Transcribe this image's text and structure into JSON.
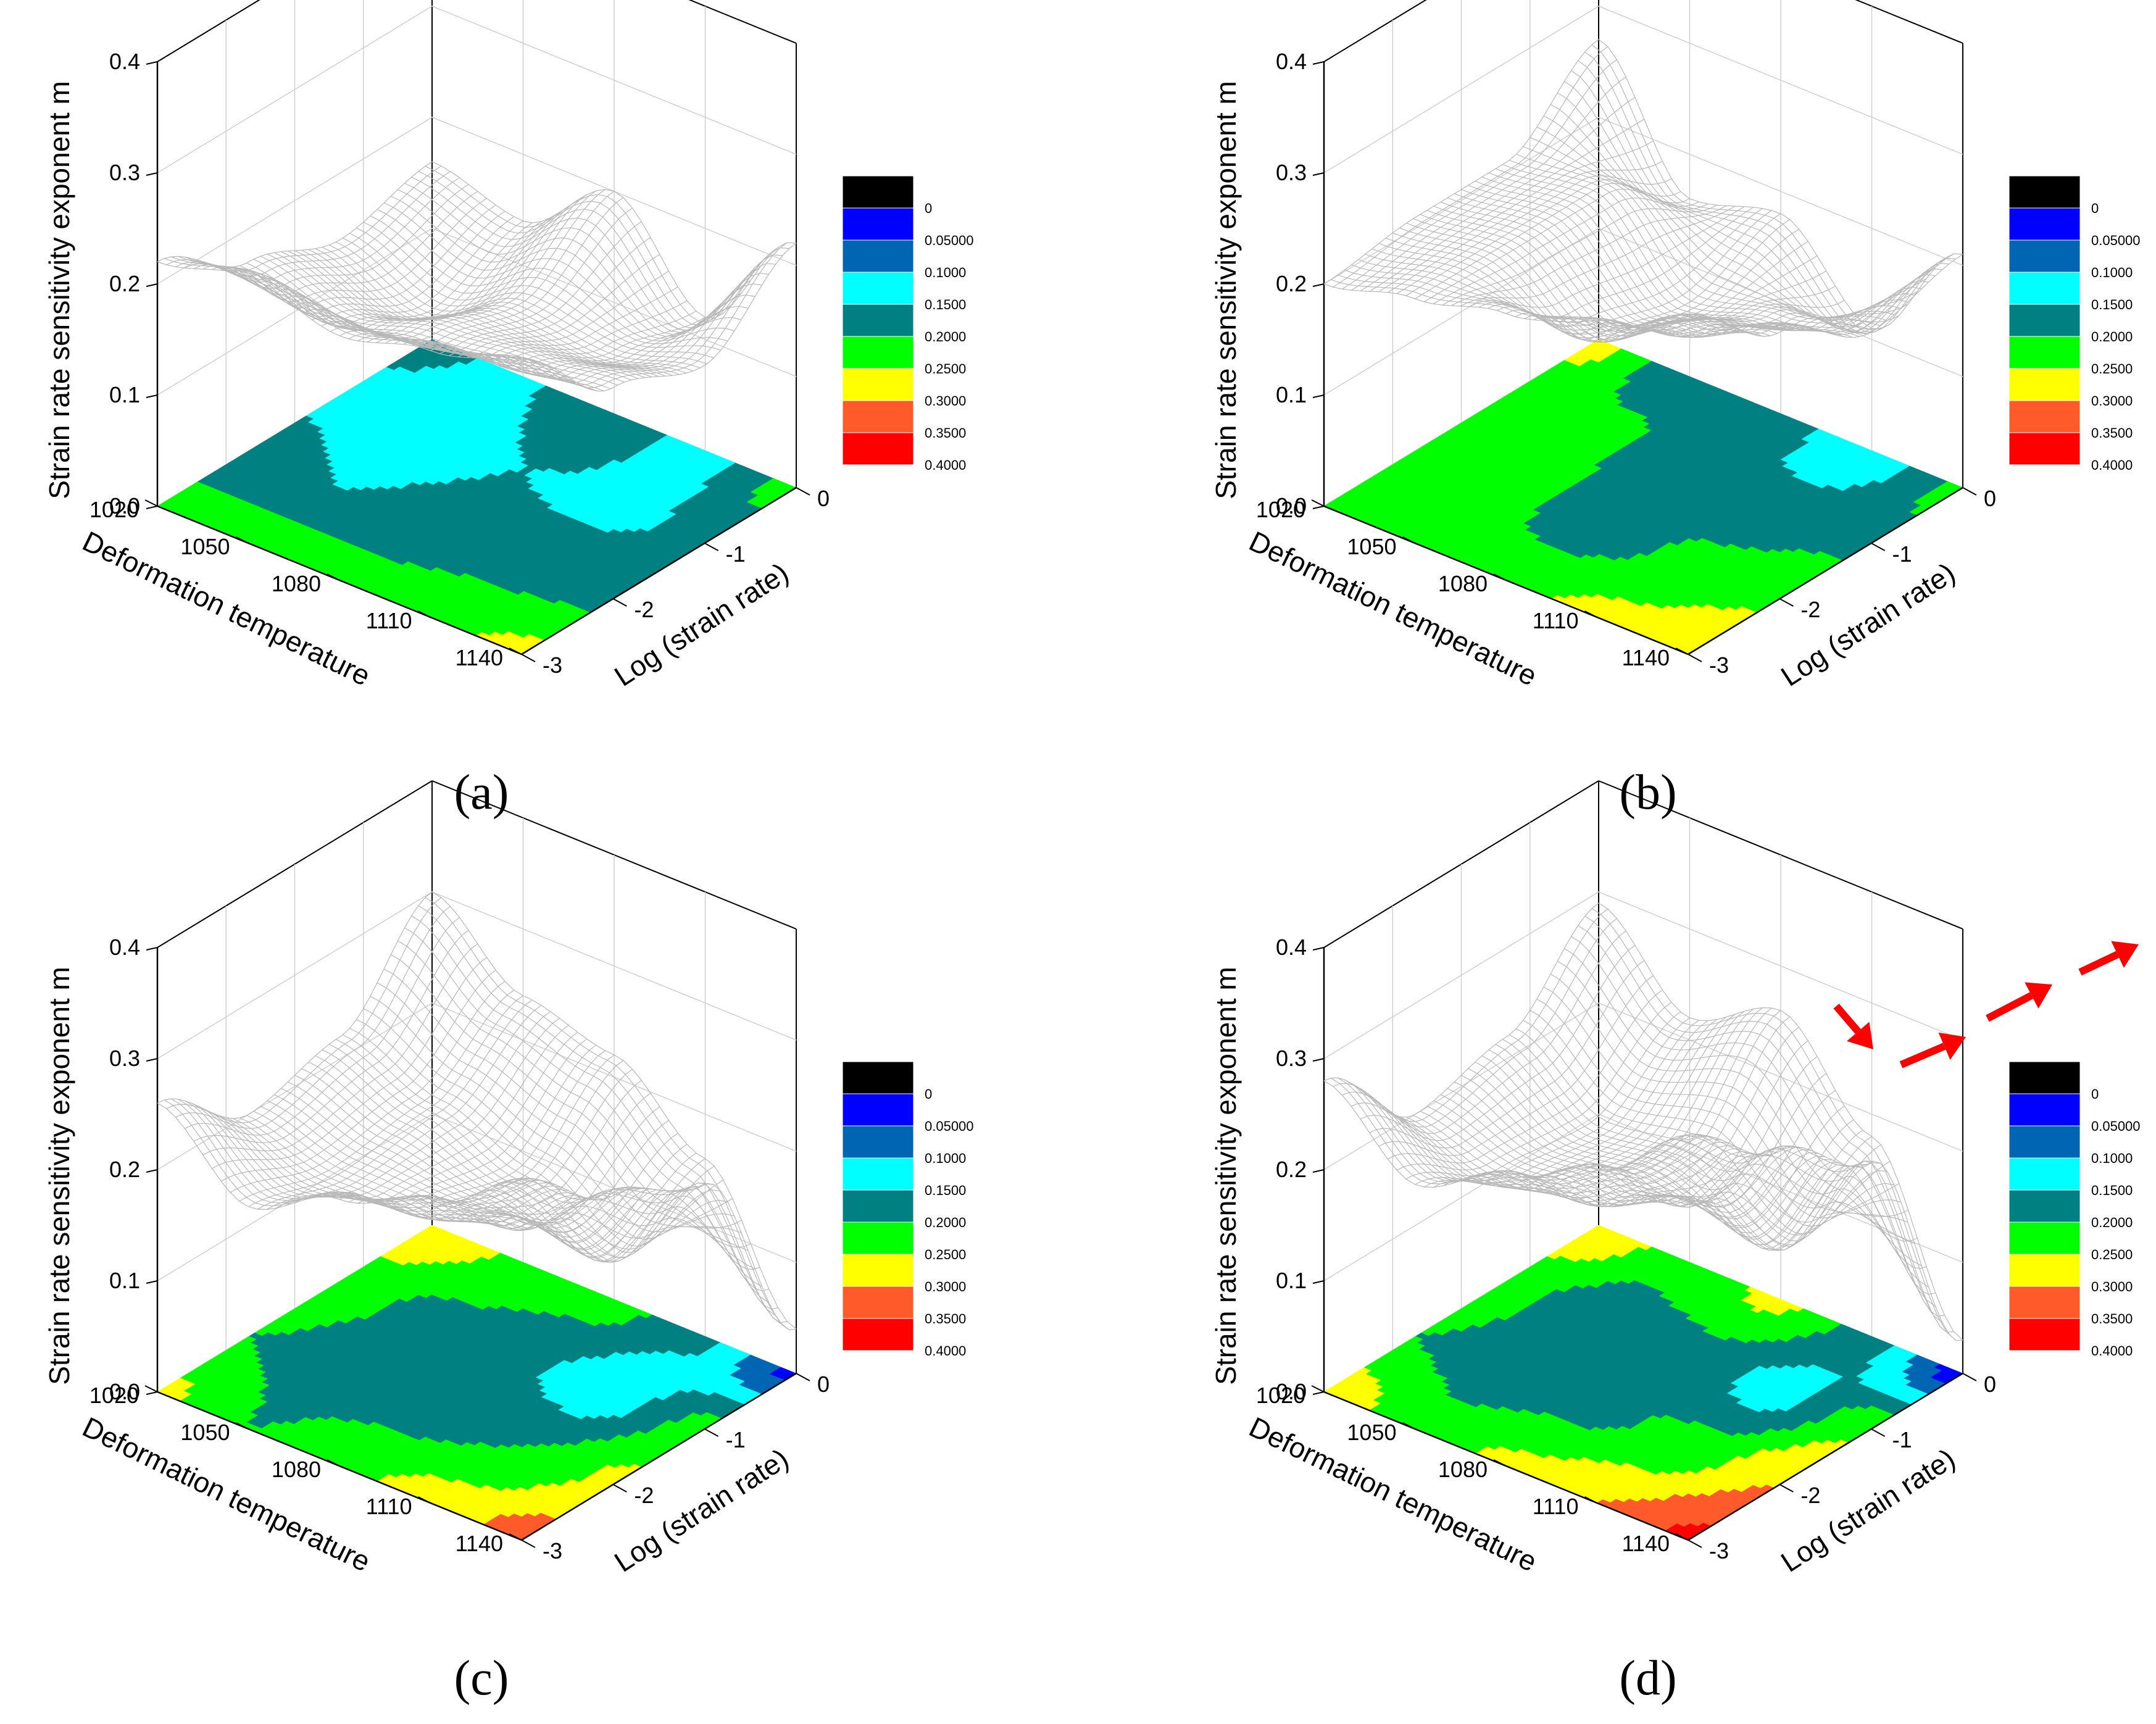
{
  "figure": {
    "panels": [
      {
        "id": "a",
        "caption": "(a)"
      },
      {
        "id": "b",
        "caption": "(b)"
      },
      {
        "id": "c",
        "caption": "(c)"
      },
      {
        "id": "d",
        "caption": "(d)"
      }
    ]
  },
  "chart_data": [
    {
      "panel": "a",
      "type": "surface3d+contour",
      "title": "",
      "xlabel": "Deformation temperature",
      "ylabel": "Log (strain rate)",
      "zlabel": "Strain rate sensitivity exponent m",
      "x_ticks": [
        "1020",
        "1050",
        "1080",
        "1110",
        "1140"
      ],
      "y_ticks": [
        "0",
        "-1",
        "-2",
        "-3"
      ],
      "z_ticks": [
        "0.0",
        "0.1",
        "0.2",
        "0.3",
        "0.4"
      ],
      "xlim": [
        1020,
        1140
      ],
      "ylim": [
        -3,
        0
      ],
      "zlim": [
        0,
        0.4
      ],
      "x": [
        1020,
        1050,
        1080,
        1110,
        1140
      ],
      "y": [
        0,
        -1,
        -2,
        -3
      ],
      "m": [
        [
          0.16,
          0.14,
          0.17,
          0.22
        ],
        [
          0.14,
          0.11,
          0.15,
          0.24
        ],
        [
          0.2,
          0.15,
          0.17,
          0.22
        ],
        [
          0.12,
          0.14,
          0.18,
          0.24
        ],
        [
          0.22,
          0.16,
          0.19,
          0.26
        ]
      ],
      "legend": {
        "levels": [
          "",
          "0",
          "0.05000",
          "0.1000",
          "0.1500",
          "0.2000",
          "0.2500",
          "0.3000",
          "0.3500",
          "0.4000"
        ],
        "colors": [
          "#000000",
          "#0000ff",
          "#0066b3",
          "#00ffff",
          "#008080",
          "#00ff00",
          "#ffff00",
          "#ff5a2a",
          "#ff0000"
        ]
      }
    },
    {
      "panel": "b",
      "type": "surface3d+contour",
      "title": "",
      "xlabel": "Deformation temperature",
      "ylabel": "Log (strain rate)",
      "zlabel": "Strain rate sensitivity exponent m",
      "x_ticks": [
        "1020",
        "1050",
        "1080",
        "1110",
        "1140"
      ],
      "y_ticks": [
        "0",
        "-1",
        "-2",
        "-3"
      ],
      "z_ticks": [
        "0.0",
        "0.1",
        "0.2",
        "0.3",
        "0.4"
      ],
      "xlim": [
        1020,
        1140
      ],
      "ylim": [
        -3,
        0
      ],
      "zlim": [
        0,
        0.4
      ],
      "x": [
        1020,
        1050,
        1080,
        1110,
        1140
      ],
      "y": [
        0,
        -1,
        -2,
        -3
      ],
      "m": [
        [
          0.27,
          0.21,
          0.21,
          0.2
        ],
        [
          0.16,
          0.22,
          0.22,
          0.22
        ],
        [
          0.18,
          0.15,
          0.17,
          0.24
        ],
        [
          0.11,
          0.17,
          0.21,
          0.26
        ],
        [
          0.21,
          0.19,
          0.24,
          0.3
        ]
      ],
      "legend": {
        "levels": [
          "",
          "0",
          "0.05000",
          "0.1000",
          "0.1500",
          "0.2000",
          "0.2500",
          "0.3000",
          "0.3500",
          "0.4000"
        ],
        "colors": [
          "#000000",
          "#0000ff",
          "#0066b3",
          "#00ffff",
          "#008080",
          "#00ff00",
          "#ffff00",
          "#ff5a2a",
          "#ff0000"
        ]
      }
    },
    {
      "panel": "c",
      "type": "surface3d+contour",
      "title": "",
      "xlabel": "Deformation temperature",
      "ylabel": "Log (strain rate)",
      "zlabel": "Strain rate sensitivity exponent m",
      "x_ticks": [
        "1020",
        "1050",
        "1080",
        "1110",
        "1140"
      ],
      "y_ticks": [
        "0",
        "-1",
        "-2",
        "-3"
      ],
      "z_ticks": [
        "0.0",
        "0.1",
        "0.2",
        "0.3",
        "0.4"
      ],
      "xlim": [
        1020,
        1140
      ],
      "ylim": [
        -3,
        0
      ],
      "zlim": [
        0,
        0.4
      ],
      "x": [
        1020,
        1050,
        1080,
        1110,
        1140
      ],
      "y": [
        0,
        -1,
        -2,
        -3
      ],
      "m": [
        [
          0.3,
          0.22,
          0.2,
          0.26
        ],
        [
          0.24,
          0.19,
          0.18,
          0.2
        ],
        [
          0.22,
          0.16,
          0.18,
          0.24
        ],
        [
          0.16,
          0.12,
          0.2,
          0.27
        ],
        [
          0.04,
          0.22,
          0.26,
          0.32
        ]
      ],
      "legend": {
        "levels": [
          "",
          "0",
          "0.05000",
          "0.1000",
          "0.1500",
          "0.2000",
          "0.2500",
          "0.3000",
          "0.3500",
          "0.4000"
        ],
        "colors": [
          "#000000",
          "#0000ff",
          "#0066b3",
          "#00ffff",
          "#008080",
          "#00ff00",
          "#ffff00",
          "#ff5a2a",
          "#ff0000"
        ]
      }
    },
    {
      "panel": "d",
      "type": "surface3d+contour",
      "title": "",
      "xlabel": "Deformation temperature",
      "ylabel": "Log (strain rate)",
      "zlabel": "Strain rate sensitivity exponent m",
      "x_ticks": [
        "1020",
        "1050",
        "1080",
        "1110",
        "1140"
      ],
      "y_ticks": [
        "0",
        "-1",
        "-2",
        "-3"
      ],
      "z_ticks": [
        "0.0",
        "0.1",
        "0.2",
        "0.3",
        "0.4"
      ],
      "xlim": [
        1020,
        1140
      ],
      "ylim": [
        -3,
        0
      ],
      "zlim": [
        0,
        0.4
      ],
      "x": [
        1020,
        1050,
        1080,
        1110,
        1140
      ],
      "y": [
        0,
        -1,
        -2,
        -3
      ],
      "m": [
        [
          0.29,
          0.22,
          0.2,
          0.28
        ],
        [
          0.22,
          0.17,
          0.18,
          0.22
        ],
        [
          0.26,
          0.18,
          0.19,
          0.26
        ],
        [
          0.18,
          0.13,
          0.22,
          0.3
        ],
        [
          0.03,
          0.24,
          0.3,
          0.36
        ]
      ],
      "annotations": [
        {
          "type": "arrows",
          "color": "#ff0000",
          "count": 4,
          "description": "increasing trend along surface edge"
        }
      ],
      "legend": {
        "levels": [
          "",
          "0",
          "0.05000",
          "0.1000",
          "0.1500",
          "0.2000",
          "0.2500",
          "0.3000",
          "0.3500",
          "0.4000"
        ],
        "colors": [
          "#000000",
          "#0000ff",
          "#0066b3",
          "#00ffff",
          "#008080",
          "#00ff00",
          "#ffff00",
          "#ff5a2a",
          "#ff0000"
        ]
      }
    }
  ]
}
